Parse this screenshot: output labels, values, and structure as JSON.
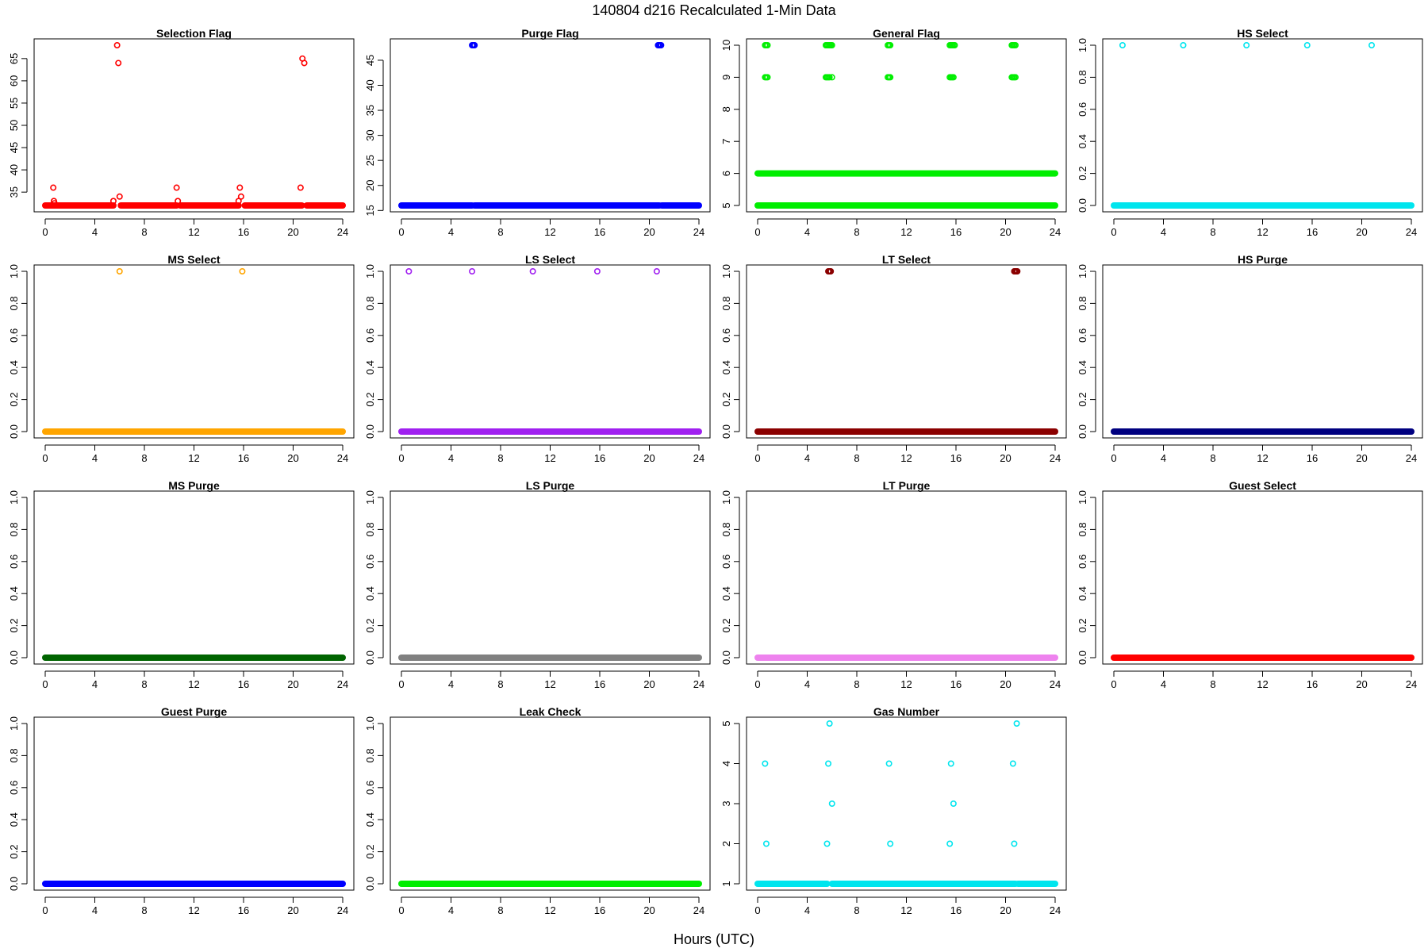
{
  "figure": {
    "title": "140804   d216   Recalculated 1-Min Data",
    "xlabel": "Hours (UTC)"
  },
  "chart_data": [
    {
      "type": "scatter",
      "title": "Selection Flag",
      "color": "#ff0000",
      "xlim": [
        0,
        24
      ],
      "ylim": [
        32,
        68
      ],
      "xticks": [
        0,
        4,
        8,
        12,
        16,
        20,
        24
      ],
      "yticks": [
        35,
        40,
        45,
        50,
        55,
        60,
        65
      ],
      "baseline": {
        "value": 32,
        "x_segments": [
          [
            0,
            5.5
          ],
          [
            6.1,
            10.6
          ],
          [
            10.9,
            15.6
          ],
          [
            16.1,
            20.7
          ],
          [
            21.1,
            24
          ]
        ]
      },
      "points": [
        [
          0.65,
          36
        ],
        [
          0.7,
          33
        ],
        [
          0.75,
          32.5
        ],
        [
          5.5,
          33
        ],
        [
          5.8,
          68
        ],
        [
          5.9,
          64
        ],
        [
          6.0,
          34
        ],
        [
          10.6,
          36
        ],
        [
          10.7,
          33
        ],
        [
          15.6,
          33
        ],
        [
          15.7,
          36
        ],
        [
          15.8,
          34
        ],
        [
          20.6,
          36
        ],
        [
          20.75,
          65
        ],
        [
          20.9,
          64
        ]
      ]
    },
    {
      "type": "scatter",
      "title": "Purge Flag",
      "color": "#0000ff",
      "xlim": [
        0,
        24
      ],
      "ylim": [
        16,
        48
      ],
      "xticks": [
        0,
        4,
        8,
        12,
        16,
        20,
        24
      ],
      "yticks": [
        15,
        20,
        25,
        30,
        35,
        40,
        45
      ],
      "baseline": {
        "value": 16,
        "x_segments": [
          [
            0,
            5.7
          ],
          [
            5.9,
            20.8
          ],
          [
            21.0,
            24
          ]
        ]
      },
      "points": [
        [
          5.7,
          48
        ],
        [
          5.75,
          48
        ],
        [
          5.8,
          48
        ],
        [
          5.85,
          48
        ],
        [
          5.9,
          48
        ],
        [
          20.7,
          48
        ],
        [
          20.75,
          48
        ],
        [
          20.8,
          48
        ],
        [
          20.85,
          48
        ],
        [
          20.9,
          48
        ],
        [
          20.95,
          48
        ]
      ]
    },
    {
      "type": "scatter",
      "title": "General Flag",
      "color": "#00ee00",
      "xlim": [
        0,
        24
      ],
      "ylim": [
        5,
        10
      ],
      "xticks": [
        0,
        4,
        8,
        12,
        16,
        20,
        24
      ],
      "yticks": [
        5,
        6,
        7,
        8,
        9,
        10
      ],
      "baseline": {
        "value": 5,
        "x_segments": [
          [
            0,
            24
          ]
        ]
      },
      "lines": [
        {
          "value": 6,
          "x_segments": [
            [
              0,
              24
            ]
          ]
        }
      ],
      "points": [
        [
          0.6,
          10
        ],
        [
          0.7,
          10
        ],
        [
          0.8,
          10
        ],
        [
          0.6,
          9
        ],
        [
          0.7,
          9
        ],
        [
          0.8,
          9
        ],
        [
          5.5,
          10
        ],
        [
          5.6,
          10
        ],
        [
          5.7,
          10
        ],
        [
          5.8,
          10
        ],
        [
          5.9,
          10
        ],
        [
          6.0,
          10
        ],
        [
          5.5,
          9
        ],
        [
          5.6,
          9
        ],
        [
          5.7,
          9
        ],
        [
          5.8,
          9
        ],
        [
          6.0,
          9
        ],
        [
          10.5,
          10
        ],
        [
          10.6,
          10
        ],
        [
          10.7,
          10
        ],
        [
          10.5,
          9
        ],
        [
          10.6,
          9
        ],
        [
          10.7,
          9
        ],
        [
          15.5,
          10
        ],
        [
          15.6,
          10
        ],
        [
          15.7,
          10
        ],
        [
          15.8,
          10
        ],
        [
          15.9,
          10
        ],
        [
          15.5,
          9
        ],
        [
          15.6,
          9
        ],
        [
          15.7,
          9
        ],
        [
          15.8,
          9
        ],
        [
          20.5,
          10
        ],
        [
          20.6,
          10
        ],
        [
          20.7,
          10
        ],
        [
          20.8,
          10
        ],
        [
          20.5,
          9
        ],
        [
          20.6,
          9
        ],
        [
          20.7,
          9
        ],
        [
          20.8,
          9
        ]
      ]
    },
    {
      "type": "scatter",
      "title": "HS Select",
      "color": "#00e5ee",
      "xlim": [
        0,
        24
      ],
      "ylim": [
        0,
        1
      ],
      "xticks": [
        0,
        4,
        8,
        12,
        16,
        20,
        24
      ],
      "yticks": [
        0.0,
        0.2,
        0.4,
        0.6,
        0.8,
        1.0
      ],
      "baseline": {
        "value": 0,
        "x_segments": [
          [
            0,
            24
          ]
        ]
      },
      "points": [
        [
          0.7,
          1
        ],
        [
          5.6,
          1
        ],
        [
          10.7,
          1
        ],
        [
          15.6,
          1
        ],
        [
          20.8,
          1
        ]
      ]
    },
    {
      "type": "scatter",
      "title": "MS Select",
      "color": "#ffa500",
      "xlim": [
        0,
        24
      ],
      "ylim": [
        0,
        1
      ],
      "xticks": [
        0,
        4,
        8,
        12,
        16,
        20,
        24
      ],
      "yticks": [
        0.0,
        0.2,
        0.4,
        0.6,
        0.8,
        1.0
      ],
      "baseline": {
        "value": 0,
        "x_segments": [
          [
            0,
            24
          ]
        ]
      },
      "points": [
        [
          6.0,
          1
        ],
        [
          15.9,
          1
        ]
      ]
    },
    {
      "type": "scatter",
      "title": "LS Select",
      "color": "#a020f0",
      "xlim": [
        0,
        24
      ],
      "ylim": [
        0,
        1
      ],
      "xticks": [
        0,
        4,
        8,
        12,
        16,
        20,
        24
      ],
      "yticks": [
        0.0,
        0.2,
        0.4,
        0.6,
        0.8,
        1.0
      ],
      "baseline": {
        "value": 0,
        "x_segments": [
          [
            0,
            24
          ]
        ]
      },
      "points": [
        [
          0.6,
          1
        ],
        [
          5.7,
          1
        ],
        [
          10.6,
          1
        ],
        [
          15.8,
          1
        ],
        [
          20.6,
          1
        ]
      ]
    },
    {
      "type": "scatter",
      "title": "LT Select",
      "color": "#8b0000",
      "xlim": [
        0,
        24
      ],
      "ylim": [
        0,
        1
      ],
      "xticks": [
        0,
        4,
        8,
        12,
        16,
        20,
        24
      ],
      "yticks": [
        0.0,
        0.2,
        0.4,
        0.6,
        0.8,
        1.0
      ],
      "baseline": {
        "value": 0,
        "x_segments": [
          [
            0,
            24
          ]
        ]
      },
      "points": [
        [
          5.7,
          1
        ],
        [
          5.75,
          1
        ],
        [
          5.8,
          1
        ],
        [
          5.85,
          1
        ],
        [
          5.9,
          1
        ],
        [
          20.7,
          1
        ],
        [
          20.75,
          1
        ],
        [
          20.8,
          1
        ],
        [
          20.85,
          1
        ],
        [
          20.9,
          1
        ],
        [
          20.95,
          1
        ]
      ]
    },
    {
      "type": "scatter",
      "title": "HS Purge",
      "color": "#000080",
      "xlim": [
        0,
        24
      ],
      "ylim": [
        0,
        1
      ],
      "xticks": [
        0,
        4,
        8,
        12,
        16,
        20,
        24
      ],
      "yticks": [
        0.0,
        0.2,
        0.4,
        0.6,
        0.8,
        1.0
      ],
      "baseline": {
        "value": 0,
        "x_segments": [
          [
            0,
            24
          ]
        ]
      },
      "points": []
    },
    {
      "type": "scatter",
      "title": "MS Purge",
      "color": "#006400",
      "xlim": [
        0,
        24
      ],
      "ylim": [
        0,
        1
      ],
      "xticks": [
        0,
        4,
        8,
        12,
        16,
        20,
        24
      ],
      "yticks": [
        0.0,
        0.2,
        0.4,
        0.6,
        0.8,
        1.0
      ],
      "baseline": {
        "value": 0,
        "x_segments": [
          [
            0,
            24
          ]
        ]
      },
      "points": []
    },
    {
      "type": "scatter",
      "title": "LS Purge",
      "color": "#808080",
      "xlim": [
        0,
        24
      ],
      "ylim": [
        0,
        1
      ],
      "xticks": [
        0,
        4,
        8,
        12,
        16,
        20,
        24
      ],
      "yticks": [
        0.0,
        0.2,
        0.4,
        0.6,
        0.8,
        1.0
      ],
      "baseline": {
        "value": 0,
        "x_segments": [
          [
            0,
            24
          ]
        ]
      },
      "points": []
    },
    {
      "type": "scatter",
      "title": "LT Purge",
      "color": "#ee82ee",
      "xlim": [
        0,
        24
      ],
      "ylim": [
        0,
        1
      ],
      "xticks": [
        0,
        4,
        8,
        12,
        16,
        20,
        24
      ],
      "yticks": [
        0.0,
        0.2,
        0.4,
        0.6,
        0.8,
        1.0
      ],
      "baseline": {
        "value": 0,
        "x_segments": [
          [
            0,
            24
          ]
        ]
      },
      "points": []
    },
    {
      "type": "scatter",
      "title": "Guest Select",
      "color": "#ff0000",
      "xlim": [
        0,
        24
      ],
      "ylim": [
        0,
        1
      ],
      "xticks": [
        0,
        4,
        8,
        12,
        16,
        20,
        24
      ],
      "yticks": [
        0.0,
        0.2,
        0.4,
        0.6,
        0.8,
        1.0
      ],
      "baseline": {
        "value": 0,
        "x_segments": [
          [
            0,
            24
          ]
        ]
      },
      "points": []
    },
    {
      "type": "scatter",
      "title": "Guest Purge",
      "color": "#0000ff",
      "xlim": [
        0,
        24
      ],
      "ylim": [
        0,
        1
      ],
      "xticks": [
        0,
        4,
        8,
        12,
        16,
        20,
        24
      ],
      "yticks": [
        0.0,
        0.2,
        0.4,
        0.6,
        0.8,
        1.0
      ],
      "baseline": {
        "value": 0,
        "x_segments": [
          [
            0,
            24
          ]
        ]
      },
      "points": []
    },
    {
      "type": "scatter",
      "title": "Leak Check",
      "color": "#00ee00",
      "xlim": [
        0,
        24
      ],
      "ylim": [
        0,
        1
      ],
      "xticks": [
        0,
        4,
        8,
        12,
        16,
        20,
        24
      ],
      "yticks": [
        0.0,
        0.2,
        0.4,
        0.6,
        0.8,
        1.0
      ],
      "baseline": {
        "value": 0,
        "x_segments": [
          [
            0,
            24
          ]
        ]
      },
      "points": []
    },
    {
      "type": "scatter",
      "title": "Gas Number",
      "color": "#00e5ee",
      "xlim": [
        0,
        24
      ],
      "ylim": [
        1,
        5
      ],
      "xticks": [
        0,
        4,
        8,
        12,
        16,
        20,
        24
      ],
      "yticks": [
        1,
        2,
        3,
        4,
        5
      ],
      "baseline": {
        "value": 1,
        "x_segments": [
          [
            0,
            5.6
          ],
          [
            6.0,
            20.8
          ],
          [
            21.0,
            24
          ]
        ]
      },
      "points": [
        [
          0.6,
          4
        ],
        [
          0.7,
          2
        ],
        [
          5.6,
          2
        ],
        [
          5.7,
          4
        ],
        [
          5.8,
          5
        ],
        [
          6.0,
          3
        ],
        [
          10.6,
          4
        ],
        [
          10.7,
          2
        ],
        [
          15.5,
          2
        ],
        [
          15.6,
          4
        ],
        [
          15.8,
          3
        ],
        [
          20.6,
          4
        ],
        [
          20.7,
          2
        ],
        [
          20.9,
          5
        ]
      ]
    }
  ]
}
